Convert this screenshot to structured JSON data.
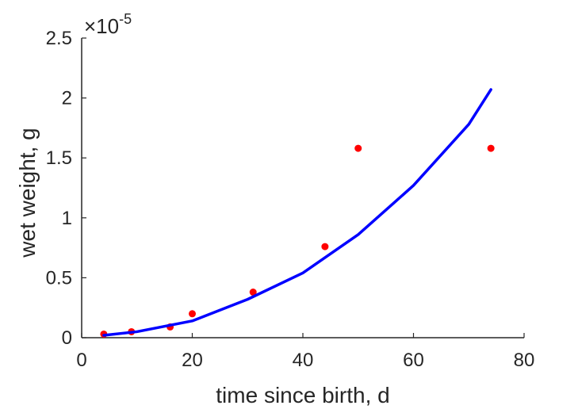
{
  "chart_data": {
    "type": "scatter",
    "xlabel": "time since birth, d",
    "ylabel": "wet weight, g",
    "xlim": [
      0,
      80
    ],
    "ylim": [
      0,
      2.5
    ],
    "x_ticks": [
      "0",
      "20",
      "40",
      "60",
      "80"
    ],
    "y_ticks": [
      "0",
      "0.5",
      "1",
      "1.5",
      "2",
      "2.5"
    ],
    "y_multiplier": {
      "base": "×10",
      "exponent": "-5"
    },
    "grid": false,
    "series": [
      {
        "kind": "points",
        "color": "#ff0000",
        "x": [
          4,
          9,
          16,
          20,
          31,
          44,
          50,
          74
        ],
        "y": [
          0.03,
          0.05,
          0.09,
          0.2,
          0.38,
          0.76,
          1.58,
          1.58
        ]
      },
      {
        "kind": "line",
        "color": "#0000ff",
        "x": [
          4,
          10,
          20,
          30,
          40,
          50,
          60,
          70,
          74
        ],
        "y": [
          0.02,
          0.05,
          0.14,
          0.32,
          0.54,
          0.86,
          1.27,
          1.78,
          2.07
        ]
      }
    ]
  }
}
